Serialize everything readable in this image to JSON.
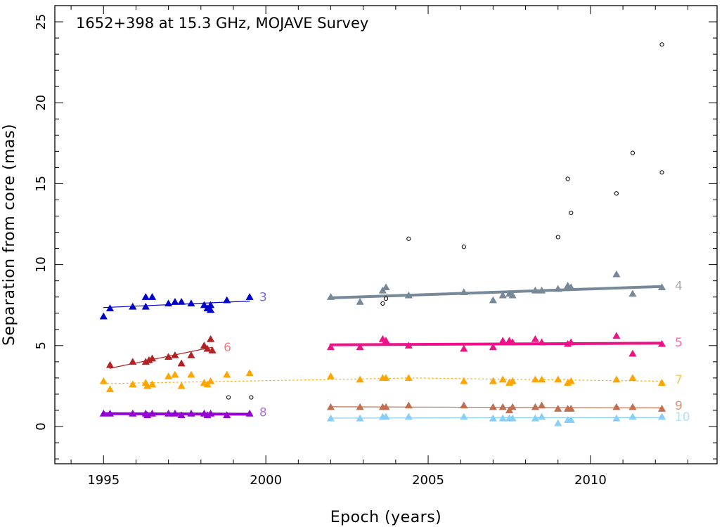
{
  "chart_data": {
    "type": "scatter",
    "title": "1652+398 at 15.3 GHz, MOJAVE Survey",
    "xlabel": "Epoch (years)",
    "ylabel": "Separation from core (mas)",
    "xlim": [
      1993.5,
      2013.9
    ],
    "ylim": [
      -2.3,
      26
    ],
    "xticks": [
      1995,
      2000,
      2005,
      2010
    ],
    "yticks": [
      0,
      5,
      10,
      15,
      20,
      25
    ],
    "series": [
      {
        "name": "3",
        "color": "#0000cc",
        "marker": "triangle",
        "points": [
          [
            1995.0,
            6.8
          ],
          [
            1995.2,
            7.3
          ],
          [
            1995.9,
            7.4
          ],
          [
            1996.3,
            7.4
          ],
          [
            1996.3,
            8.0
          ],
          [
            1996.5,
            8.0
          ],
          [
            1997.0,
            7.6
          ],
          [
            1997.2,
            7.7
          ],
          [
            1997.4,
            7.7
          ],
          [
            1997.7,
            7.6
          ],
          [
            1998.1,
            7.5
          ],
          [
            1998.2,
            7.3
          ],
          [
            1998.3,
            7.2
          ],
          [
            1998.3,
            7.5
          ],
          [
            1998.8,
            7.8
          ],
          [
            1999.5,
            8.0
          ]
        ],
        "fit": {
          "x": [
            1995.0,
            1999.5
          ],
          "y": [
            7.35,
            7.75
          ],
          "style": "solid",
          "width": 1.2
        }
      },
      {
        "name": "4",
        "color": "#778899",
        "marker": "triangle",
        "points": [
          [
            2002.0,
            8.0
          ],
          [
            2002.9,
            7.7
          ],
          [
            2003.6,
            8.4
          ],
          [
            2003.7,
            8.6
          ],
          [
            2004.4,
            8.1
          ],
          [
            2006.1,
            8.3
          ],
          [
            2007.0,
            7.8
          ],
          [
            2007.3,
            8.1
          ],
          [
            2007.5,
            8.2
          ],
          [
            2007.6,
            8.1
          ],
          [
            2008.3,
            8.4
          ],
          [
            2008.5,
            8.4
          ],
          [
            2009.0,
            8.5
          ],
          [
            2009.3,
            8.7
          ],
          [
            2009.4,
            8.6
          ],
          [
            2010.8,
            9.4
          ],
          [
            2011.3,
            8.2
          ],
          [
            2012.2,
            8.6
          ]
        ],
        "fit": {
          "x": [
            2002.0,
            2012.2
          ],
          "y": [
            7.95,
            8.65
          ],
          "style": "solid",
          "width": 4
        }
      },
      {
        "name": "5",
        "color": "#ee1188",
        "marker": "triangle",
        "points": [
          [
            2002.0,
            4.9
          ],
          [
            2002.9,
            4.9
          ],
          [
            2003.6,
            5.4
          ],
          [
            2003.7,
            5.3
          ],
          [
            2004.4,
            5.0
          ],
          [
            2006.1,
            4.8
          ],
          [
            2007.0,
            4.9
          ],
          [
            2007.3,
            5.3
          ],
          [
            2007.5,
            5.3
          ],
          [
            2007.6,
            5.2
          ],
          [
            2008.3,
            5.4
          ],
          [
            2008.5,
            5.2
          ],
          [
            2009.3,
            5.1
          ],
          [
            2009.4,
            5.2
          ],
          [
            2010.8,
            5.6
          ],
          [
            2011.3,
            4.5
          ],
          [
            2012.2,
            5.1
          ]
        ],
        "fit": {
          "x": [
            2002.0,
            2012.2
          ],
          "y": [
            5.05,
            5.15
          ],
          "style": "solid",
          "width": 4
        }
      },
      {
        "name": "6",
        "color": "#b22222",
        "marker": "triangle",
        "points": [
          [
            1995.2,
            3.8
          ],
          [
            1995.9,
            4.0
          ],
          [
            1996.3,
            4.0
          ],
          [
            1996.4,
            4.1
          ],
          [
            1996.5,
            4.2
          ],
          [
            1997.0,
            4.3
          ],
          [
            1997.2,
            4.4
          ],
          [
            1997.4,
            3.9
          ],
          [
            1997.7,
            4.4
          ],
          [
            1998.1,
            5.0
          ],
          [
            1998.2,
            4.8
          ],
          [
            1998.3,
            5.4
          ],
          [
            1998.35,
            4.7
          ]
        ],
        "fit": {
          "x": [
            1995.2,
            1998.35
          ],
          "y": [
            3.6,
            4.9
          ],
          "style": "solid",
          "width": 1.2
        }
      },
      {
        "name": "7",
        "color": "#ffa500",
        "marker": "triangle",
        "points": [
          [
            1995.0,
            2.8
          ],
          [
            1995.2,
            2.3
          ],
          [
            1995.9,
            2.6
          ],
          [
            1996.3,
            2.7
          ],
          [
            1996.35,
            2.5
          ],
          [
            1996.5,
            2.6
          ],
          [
            1997.0,
            3.1
          ],
          [
            1997.2,
            3.2
          ],
          [
            1997.4,
            2.5
          ],
          [
            1997.7,
            3.2
          ],
          [
            1998.1,
            2.7
          ],
          [
            1998.2,
            2.6
          ],
          [
            1998.3,
            2.8
          ],
          [
            1998.8,
            3.2
          ],
          [
            1999.5,
            3.3
          ],
          [
            2002.0,
            3.1
          ],
          [
            2002.9,
            2.9
          ],
          [
            2003.6,
            3.0
          ],
          [
            2003.7,
            3.0
          ],
          [
            2004.4,
            3.0
          ],
          [
            2006.1,
            2.8
          ],
          [
            2007.0,
            2.8
          ],
          [
            2007.3,
            2.9
          ],
          [
            2007.5,
            2.7
          ],
          [
            2007.6,
            2.8
          ],
          [
            2008.3,
            2.9
          ],
          [
            2008.5,
            2.9
          ],
          [
            2009.0,
            2.9
          ],
          [
            2009.3,
            2.7
          ],
          [
            2009.4,
            2.8
          ],
          [
            2010.8,
            2.9
          ],
          [
            2011.3,
            3.0
          ],
          [
            2012.2,
            2.7
          ]
        ],
        "fit": {
          "x": [
            1995.0,
            2004.5,
            2012.2
          ],
          "y": [
            2.65,
            3.0,
            2.8
          ],
          "style": "dotted",
          "width": 1.2
        }
      },
      {
        "name": "8",
        "color": "#9400d3",
        "marker": "triangle",
        "points": [
          [
            1995.0,
            0.8
          ],
          [
            1995.2,
            0.8
          ],
          [
            1995.9,
            0.8
          ],
          [
            1996.3,
            0.8
          ],
          [
            1996.35,
            0.7
          ],
          [
            1996.5,
            0.8
          ],
          [
            1997.0,
            0.8
          ],
          [
            1997.2,
            0.8
          ],
          [
            1997.4,
            0.7
          ],
          [
            1997.7,
            0.8
          ],
          [
            1998.1,
            0.8
          ],
          [
            1998.2,
            0.7
          ],
          [
            1998.3,
            0.8
          ],
          [
            1998.8,
            0.7
          ],
          [
            1999.5,
            0.8
          ]
        ],
        "fit": {
          "x": [
            1995.0,
            1999.5
          ],
          "y": [
            0.8,
            0.76
          ],
          "style": "solid",
          "width": 4
        }
      },
      {
        "name": "9",
        "color": "#c07050",
        "marker": "triangle",
        "points": [
          [
            2002.0,
            1.2
          ],
          [
            2002.9,
            1.2
          ],
          [
            2003.6,
            1.2
          ],
          [
            2003.7,
            1.2
          ],
          [
            2004.4,
            1.3
          ],
          [
            2006.1,
            1.3
          ],
          [
            2007.0,
            1.2
          ],
          [
            2007.3,
            1.2
          ],
          [
            2007.5,
            1.0
          ],
          [
            2007.6,
            1.2
          ],
          [
            2008.3,
            1.2
          ],
          [
            2008.5,
            1.3
          ],
          [
            2009.0,
            1.1
          ],
          [
            2009.3,
            1.1
          ],
          [
            2009.4,
            1.1
          ],
          [
            2010.8,
            1.2
          ],
          [
            2011.3,
            1.2
          ],
          [
            2012.2,
            1.1
          ]
        ],
        "fit": {
          "x": [
            2002.0,
            2012.2
          ],
          "y": [
            1.22,
            1.15
          ],
          "style": "solid",
          "width": 1.2
        }
      },
      {
        "name": "10",
        "color": "#87cefa",
        "marker": "triangle",
        "points": [
          [
            2002.0,
            0.5
          ],
          [
            2002.9,
            0.5
          ],
          [
            2003.6,
            0.6
          ],
          [
            2003.7,
            0.6
          ],
          [
            2004.4,
            0.6
          ],
          [
            2006.1,
            0.6
          ],
          [
            2007.0,
            0.5
          ],
          [
            2007.3,
            0.5
          ],
          [
            2007.5,
            0.5
          ],
          [
            2007.6,
            0.5
          ],
          [
            2008.3,
            0.5
          ],
          [
            2008.5,
            0.6
          ],
          [
            2009.0,
            0.2
          ],
          [
            2009.3,
            0.4
          ],
          [
            2009.4,
            0.4
          ],
          [
            2010.8,
            0.5
          ],
          [
            2011.3,
            0.6
          ],
          [
            2012.2,
            0.6
          ]
        ],
        "fit": {
          "x": [
            2002.0,
            2012.2
          ],
          "y": [
            0.52,
            0.55
          ],
          "style": "solid",
          "width": 1.2
        }
      }
    ],
    "unassociated": {
      "color": "#000000",
      "marker": "circle",
      "points": [
        [
          1998.85,
          1.8
        ],
        [
          1999.55,
          1.8
        ],
        [
          2003.6,
          7.6
        ],
        [
          2003.7,
          7.9
        ],
        [
          2004.4,
          11.6
        ],
        [
          2006.1,
          11.1
        ],
        [
          2009.0,
          11.7
        ],
        [
          2009.3,
          15.3
        ],
        [
          2009.4,
          13.2
        ],
        [
          2010.8,
          14.4
        ],
        [
          2011.3,
          16.9
        ],
        [
          2012.2,
          15.7
        ],
        [
          2012.2,
          23.6
        ]
      ]
    },
    "labels": [
      {
        "text": "3",
        "x": 1999.8,
        "y": 8.0,
        "color": "#7b68ee"
      },
      {
        "text": "4",
        "x": 2012.6,
        "y": 8.7,
        "color": "#a9a9a9"
      },
      {
        "text": "5",
        "x": 2012.6,
        "y": 5.2,
        "color": "#ff69b4"
      },
      {
        "text": "6",
        "x": 1998.7,
        "y": 4.9,
        "color": "#f08080"
      },
      {
        "text": "7",
        "x": 2012.6,
        "y": 2.9,
        "color": "#f0c860"
      },
      {
        "text": "8",
        "x": 1999.8,
        "y": 0.9,
        "color": "#b070e0"
      },
      {
        "text": "9",
        "x": 2012.6,
        "y": 1.3,
        "color": "#e09070"
      },
      {
        "text": "10",
        "x": 2012.6,
        "y": 0.6,
        "color": "#b0e0ff"
      }
    ]
  }
}
